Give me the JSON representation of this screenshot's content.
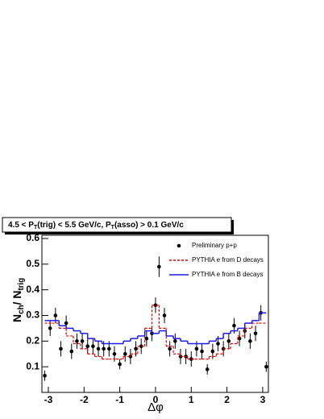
{
  "chart_data": {
    "type": "scatter",
    "title_parts": [
      "4.5 < P",
      "T",
      "(trig) < 5.5 GeV/c, P",
      "T",
      "(asso) > 0.1 GeV/c"
    ],
    "x_label": "Δφ",
    "y_label_parts": [
      "N",
      "ch",
      "/ N",
      "trig"
    ],
    "xlim": [
      -3.18,
      3.16
    ],
    "ylim": [
      0,
      0.6125
    ],
    "xticks": [
      -3,
      -2,
      -1,
      0,
      1,
      2,
      3
    ],
    "yticks": [
      0.1,
      0.2,
      0.3,
      0.4,
      0.5,
      0.6
    ],
    "legend": "top-right",
    "series": [
      {
        "name": "Preliminary p+p",
        "style": "points",
        "color": "#000000",
        "x": [
          -3.1,
          -2.95,
          -2.8,
          -2.65,
          -2.5,
          -2.35,
          -2.2,
          -2.05,
          -1.9,
          -1.75,
          -1.6,
          -1.45,
          -1.3,
          -1.15,
          -1.0,
          -0.85,
          -0.7,
          -0.55,
          -0.4,
          -0.25,
          -0.1,
          0.0,
          0.1,
          0.25,
          0.4,
          0.55,
          0.7,
          0.85,
          1.0,
          1.15,
          1.3,
          1.45,
          1.6,
          1.75,
          1.9,
          2.05,
          2.2,
          2.35,
          2.5,
          2.65,
          2.8,
          2.95,
          3.1
        ],
        "values": [
          0.065,
          0.25,
          0.3,
          0.17,
          0.27,
          0.16,
          0.2,
          0.2,
          0.18,
          0.18,
          0.17,
          0.17,
          0.17,
          0.15,
          0.11,
          0.15,
          0.14,
          0.17,
          0.18,
          0.21,
          0.23,
          0.34,
          0.49,
          0.3,
          0.17,
          0.2,
          0.14,
          0.14,
          0.13,
          0.17,
          0.16,
          0.09,
          0.16,
          0.19,
          0.17,
          0.2,
          0.26,
          0.21,
          0.24,
          0.2,
          0.23,
          0.31,
          0.1
        ],
        "errors": [
          0.02,
          0.03,
          0.03,
          0.03,
          0.03,
          0.03,
          0.03,
          0.03,
          0.03,
          0.03,
          0.03,
          0.03,
          0.03,
          0.03,
          0.02,
          0.03,
          0.03,
          0.03,
          0.03,
          0.03,
          0.03,
          0.03,
          0.04,
          0.03,
          0.03,
          0.03,
          0.03,
          0.03,
          0.03,
          0.03,
          0.03,
          0.02,
          0.03,
          0.03,
          0.03,
          0.03,
          0.03,
          0.03,
          0.03,
          0.03,
          0.03,
          0.03,
          0.02
        ]
      },
      {
        "name": "PYTHIA e from D decays",
        "style": "dashed-step",
        "color": "#dd0000",
        "x": [
          -3.0,
          -2.8,
          -2.6,
          -2.4,
          -2.2,
          -2.0,
          -1.8,
          -1.6,
          -1.4,
          -1.2,
          -1.0,
          -0.8,
          -0.6,
          -0.4,
          -0.2,
          0.0,
          0.2,
          0.4,
          0.6,
          0.8,
          1.0,
          1.2,
          1.4,
          1.6,
          1.8,
          2.0,
          2.2,
          2.4,
          2.6,
          2.8,
          3.0
        ],
        "values": [
          0.27,
          0.27,
          0.25,
          0.22,
          0.19,
          0.17,
          0.15,
          0.14,
          0.13,
          0.13,
          0.13,
          0.14,
          0.15,
          0.18,
          0.25,
          0.34,
          0.25,
          0.18,
          0.15,
          0.14,
          0.13,
          0.13,
          0.13,
          0.14,
          0.15,
          0.17,
          0.19,
          0.22,
          0.25,
          0.27,
          0.27
        ]
      },
      {
        "name": "PYTHIA e from B decays",
        "style": "step",
        "color": "#1a1aee",
        "x": [
          -3.0,
          -2.8,
          -2.6,
          -2.4,
          -2.2,
          -2.0,
          -1.8,
          -1.6,
          -1.4,
          -1.2,
          -1.0,
          -0.8,
          -0.6,
          -0.4,
          -0.2,
          0.0,
          0.2,
          0.4,
          0.6,
          0.8,
          1.0,
          1.2,
          1.4,
          1.6,
          1.8,
          2.0,
          2.2,
          2.4,
          2.6,
          2.8,
          3.0
        ],
        "values": [
          0.28,
          0.28,
          0.26,
          0.25,
          0.24,
          0.23,
          0.21,
          0.2,
          0.19,
          0.19,
          0.19,
          0.2,
          0.21,
          0.22,
          0.24,
          0.23,
          0.24,
          0.22,
          0.21,
          0.2,
          0.19,
          0.19,
          0.19,
          0.2,
          0.21,
          0.23,
          0.24,
          0.25,
          0.27,
          0.28,
          0.31
        ]
      }
    ]
  }
}
